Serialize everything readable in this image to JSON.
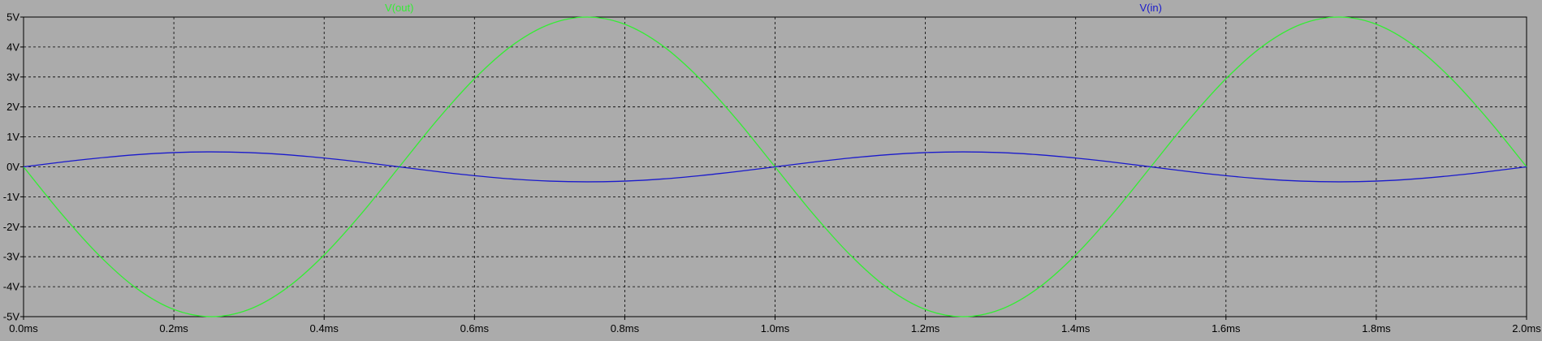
{
  "chart_data": {
    "type": "line",
    "title": "",
    "xlabel": "",
    "ylabel": "",
    "xlim": [
      0.0,
      2.0
    ],
    "ylim": [
      -5,
      5
    ],
    "x_unit": "ms",
    "y_unit": "V",
    "grid": true,
    "legend_placement": "top",
    "colors": {
      "background": "#ababab",
      "plot_area": "#ababab",
      "grid": "#000000",
      "axes": "#000000"
    },
    "x_ticks": [
      "0.0ms",
      "0.2ms",
      "0.4ms",
      "0.6ms",
      "0.8ms",
      "1.0ms",
      "1.2ms",
      "1.4ms",
      "1.6ms",
      "1.8ms",
      "2.0ms"
    ],
    "y_ticks": [
      "5V",
      "4V",
      "3V",
      "2V",
      "1V",
      "0V",
      "-1V",
      "-2V",
      "-3V",
      "-4V",
      "-5V"
    ],
    "x": [
      0.0,
      0.05,
      0.1,
      0.15,
      0.2,
      0.25,
      0.3,
      0.35,
      0.4,
      0.45,
      0.5,
      0.55,
      0.6,
      0.65,
      0.7,
      0.75,
      0.8,
      0.85,
      0.9,
      0.95,
      1.0,
      1.05,
      1.1,
      1.15,
      1.2,
      1.25,
      1.3,
      1.35,
      1.4,
      1.45,
      1.5,
      1.55,
      1.6,
      1.65,
      1.7,
      1.75,
      1.8,
      1.85,
      1.9,
      1.95,
      2.0
    ],
    "series": [
      {
        "name": "V(out)",
        "color": "#33ee33",
        "values": [
          0.0,
          -1.55,
          -2.94,
          -4.05,
          -4.76,
          -5.0,
          -4.76,
          -4.05,
          -2.94,
          -1.55,
          0.0,
          1.55,
          2.94,
          4.05,
          4.76,
          5.0,
          4.76,
          4.05,
          2.94,
          1.55,
          0.0,
          -1.55,
          -2.94,
          -4.05,
          -4.76,
          -5.0,
          -4.76,
          -4.05,
          -2.94,
          -1.55,
          0.0,
          1.55,
          2.94,
          4.05,
          4.76,
          5.0,
          4.76,
          4.05,
          2.94,
          1.55,
          0.0
        ]
      },
      {
        "name": "V(in)",
        "color": "#1a1acc",
        "values": [
          0.0,
          0.155,
          0.294,
          0.405,
          0.476,
          0.5,
          0.476,
          0.405,
          0.294,
          0.155,
          0.0,
          -0.155,
          -0.294,
          -0.405,
          -0.476,
          -0.5,
          -0.476,
          -0.405,
          -0.294,
          -0.155,
          0.0,
          0.155,
          0.294,
          0.405,
          0.476,
          0.5,
          0.476,
          0.405,
          0.294,
          0.155,
          0.0,
          -0.155,
          -0.294,
          -0.405,
          -0.476,
          -0.5,
          -0.476,
          -0.405,
          -0.294,
          -0.155,
          0.0
        ]
      }
    ]
  }
}
